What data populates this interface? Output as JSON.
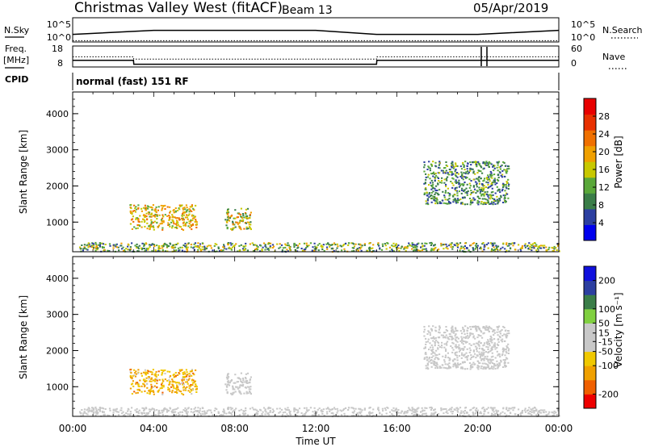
{
  "header": {
    "station": "Christmas Valley West (fitACF)",
    "beam": "Beam 13",
    "date": "05/Apr/2019"
  },
  "params_panel": {
    "nsky_label": "N.Sky",
    "nsearch_label": "N.Search",
    "nsky_ticks": [
      "10^5",
      "10^0"
    ],
    "nsearch_ticks": [
      "10^5",
      "10^0"
    ],
    "freq_label": "Freq.",
    "freq_unit": "[MHz]",
    "freq_ticks": [
      "18",
      "8"
    ],
    "nave_label": "Nave",
    "nave_ticks": [
      "60",
      "0"
    ],
    "cpid_label": "CPID",
    "cpid_text": "normal (fast) 151 RF"
  },
  "colors": {
    "power_scale": [
      "#0000ee",
      "#2c3fa0",
      "#3a7d48",
      "#5aa83a",
      "#c8c800",
      "#f0a000",
      "#f07000",
      "#e83000",
      "#e80000"
    ],
    "velocity_scale": [
      "#ee0000",
      "#f06000",
      "#f0a000",
      "#f0c800",
      "#c8c8c8",
      "#c8c8c8",
      "#80d040",
      "#3a7d48",
      "#2c3fa0",
      "#1010dd"
    ]
  },
  "chart_data": [
    {
      "type": "line",
      "panel": "N.Sky / N.Search",
      "x": [
        "00:00",
        "04:00",
        "08:00",
        "12:00",
        "15:00",
        "16:00",
        "20:00",
        "24:00"
      ],
      "series": [
        {
          "name": "N.Sky",
          "values": [
            1.5,
            2.4,
            2.4,
            2.4,
            1.5,
            1.5,
            1.5,
            2.4
          ]
        },
        {
          "name": "N.Search",
          "values": [
            0.1,
            0.1,
            0.1,
            0.1,
            0.1,
            0.1,
            0.1,
            0.1
          ]
        }
      ],
      "ylim": [
        0,
        5
      ]
    },
    {
      "type": "line",
      "panel": "Freq. / Nave",
      "x": [
        "00:00",
        "03:00",
        "03:01",
        "15:00",
        "15:01",
        "24:00"
      ],
      "series": [
        {
          "name": "Freq.",
          "values": [
            11,
            11,
            9,
            9,
            11,
            11
          ]
        },
        {
          "name": "Nave",
          "values": [
            29,
            29,
            22,
            22,
            29,
            29
          ]
        }
      ],
      "ylim": [
        8,
        18
      ]
    },
    {
      "type": "heatmap",
      "panel": "Power",
      "xlabel": "",
      "ylabel": "Slant Range [km]",
      "x_ticks": [
        "00:00",
        "04:00",
        "08:00",
        "12:00",
        "16:00",
        "20:00",
        "00:00"
      ],
      "y_ticks": [
        "1000",
        "2000",
        "3000",
        "4000"
      ],
      "xlim_hours": [
        0,
        24
      ],
      "ylim_km": [
        180,
        4600
      ],
      "colorbar_label": "Power [dB]",
      "colorbar_ticks": [
        "4",
        "8",
        "12",
        "16",
        "20",
        "24",
        "28"
      ],
      "colorbar_range": [
        0,
        32
      ],
      "regions": [
        {
          "t0": 2.8,
          "t1": 6.1,
          "r0": 800,
          "r1": 1500,
          "v0": 12,
          "v1": 24
        },
        {
          "t0": 7.5,
          "t1": 8.8,
          "r0": 800,
          "r1": 1400,
          "v0": 8,
          "v1": 24
        },
        {
          "t0": 17.3,
          "t1": 21.5,
          "r0": 1500,
          "r1": 2700,
          "v0": 4,
          "v1": 16
        },
        {
          "t0": 0.3,
          "t1": 24,
          "r0": 200,
          "r1": 450,
          "v0": 4,
          "v1": 20
        }
      ]
    },
    {
      "type": "heatmap",
      "panel": "Velocity",
      "xlabel": "Time UT",
      "ylabel": "Slant Range [km]",
      "x_ticks": [
        "00:00",
        "04:00",
        "08:00",
        "12:00",
        "16:00",
        "20:00",
        "00:00"
      ],
      "y_ticks": [
        "1000",
        "2000",
        "3000",
        "4000"
      ],
      "xlim_hours": [
        0,
        24
      ],
      "ylim_km": [
        180,
        4600
      ],
      "colorbar_label": "Velocity [m s⁻¹]",
      "colorbar_ticks": [
        "-200",
        "-100",
        "-50",
        "-15",
        "15",
        "50",
        "100",
        "200"
      ],
      "colorbar_range": [
        -250,
        250
      ],
      "regions": [
        {
          "t0": 2.8,
          "t1": 6.1,
          "r0": 800,
          "r1": 1500,
          "v0": -160,
          "v1": -40
        },
        {
          "t0": 7.5,
          "t1": 8.8,
          "r0": 800,
          "r1": 1400,
          "v0": -10,
          "v1": 10
        },
        {
          "t0": 17.3,
          "t1": 21.5,
          "r0": 1500,
          "r1": 2700,
          "v0": -10,
          "v1": 10
        },
        {
          "t0": 0.3,
          "t1": 24,
          "r0": 200,
          "r1": 450,
          "v0": -40,
          "v1": 20
        }
      ]
    }
  ]
}
